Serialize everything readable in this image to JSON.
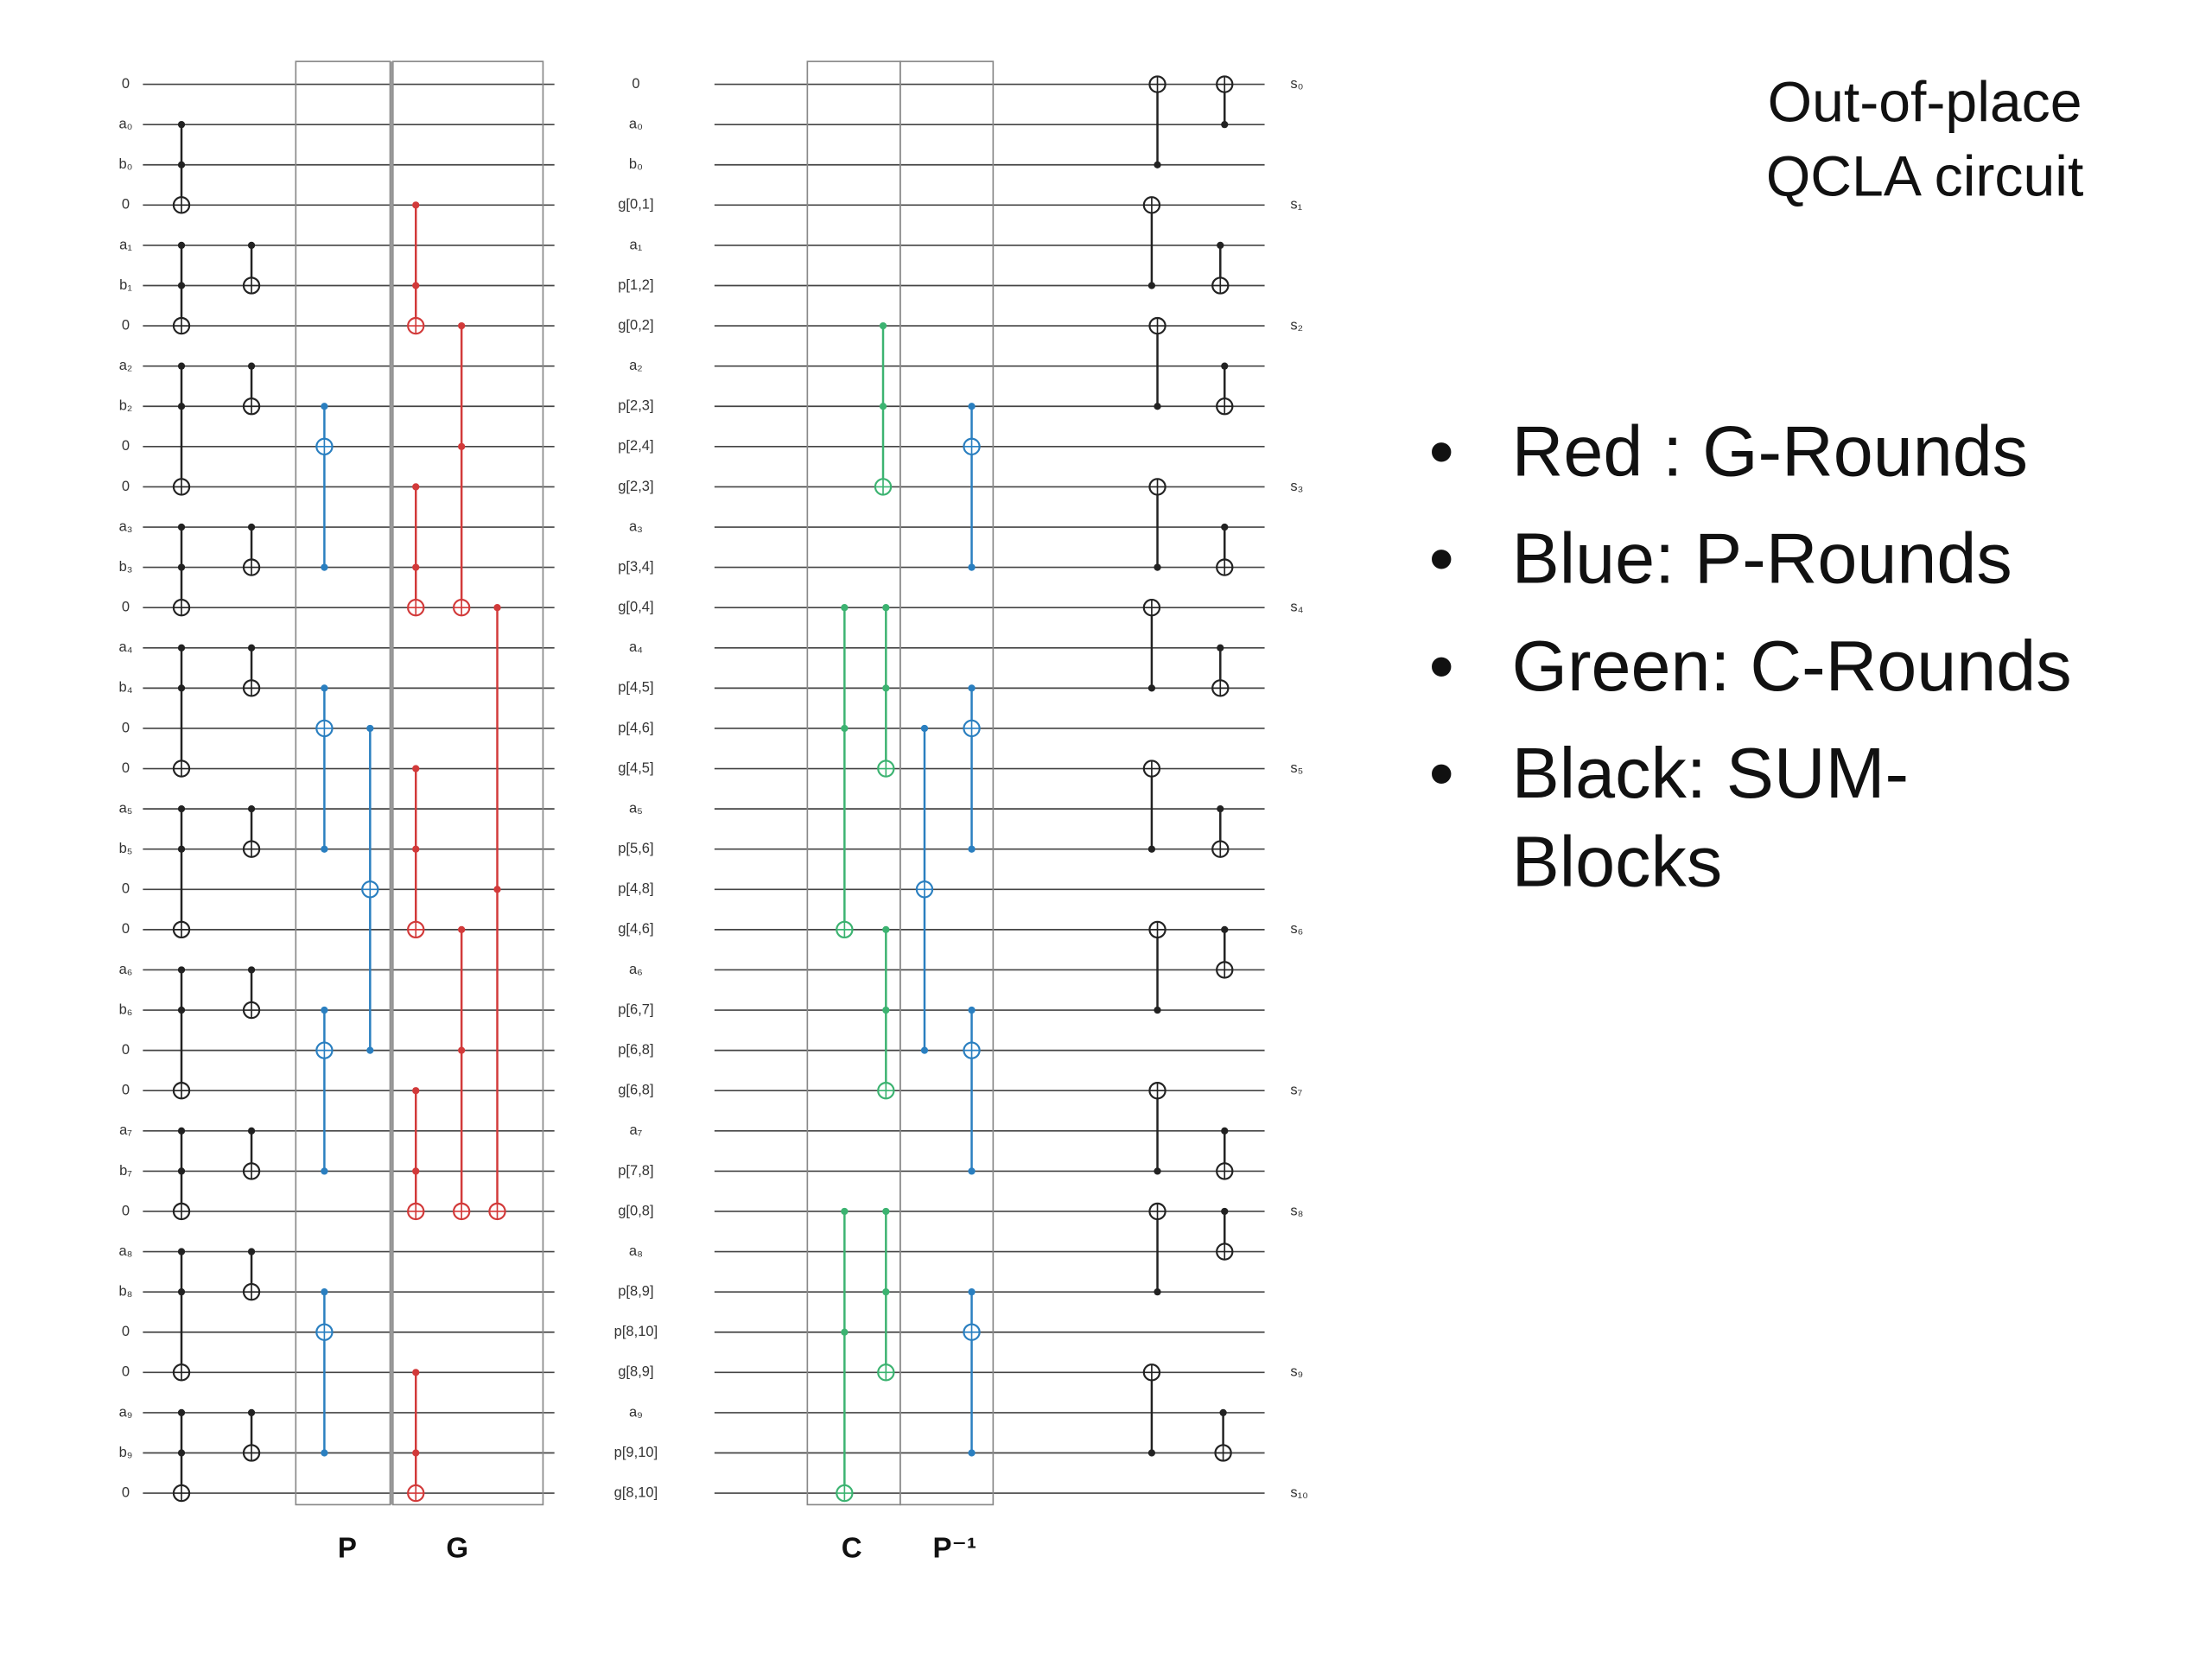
{
  "title_lines": [
    "Out-of-place",
    "QCLA circuit"
  ],
  "bullets": [
    {
      "symbol": "•",
      "lines": [
        "Red : G-Rounds"
      ]
    },
    {
      "symbol": "•",
      "lines": [
        "Blue: P-Rounds"
      ]
    },
    {
      "symbol": "•",
      "lines": [
        "Green: C-Rounds"
      ]
    },
    {
      "symbol": "•",
      "lines": [
        "Black: SUM-",
        "Blocks"
      ]
    }
  ],
  "left_labels": [
    "0",
    "a₀",
    "b₀",
    "0",
    "a₁",
    "b₁",
    "0",
    "a₂",
    "b₂",
    "0",
    "0",
    "a₃",
    "b₃",
    "0",
    "a₄",
    "b₄",
    "0",
    "0",
    "a₅",
    "b₅",
    "0",
    "0",
    "a₆",
    "b₆",
    "0",
    "0",
    "a₇",
    "b₇",
    "0",
    "a₈",
    "b₈",
    "0",
    "0",
    "a₉",
    "b₉",
    "0"
  ],
  "middle_labels": [
    "0",
    "a₀",
    "b₀",
    "g[0,1]",
    "a₁",
    "p[1,2]",
    "g[0,2]",
    "a₂",
    "p[2,3]",
    "p[2,4]",
    "g[2,3]",
    "a₃",
    "p[3,4]",
    "g[0,4]",
    "a₄",
    "p[4,5]",
    "p[4,6]",
    "g[4,5]",
    "a₅",
    "p[5,6]",
    "p[4,8]",
    "g[4,6]",
    "a₆",
    "p[6,7]",
    "p[6,8]",
    "g[6,8]",
    "a₇",
    "p[7,8]",
    "g[0,8]",
    "a₈",
    "p[8,9]",
    "p[8,10]",
    "g[8,9]",
    "a₉",
    "p[9,10]",
    "g[8,10]"
  ],
  "sum_labels": [
    "s₀",
    "s₁",
    "s₂",
    "s₃",
    "s₄",
    "s₅",
    "s₆",
    "s₇",
    "s₈",
    "s₉",
    "s₁₀"
  ],
  "box_labels": [
    "P",
    "G",
    "C",
    "P⁻¹"
  ]
}
